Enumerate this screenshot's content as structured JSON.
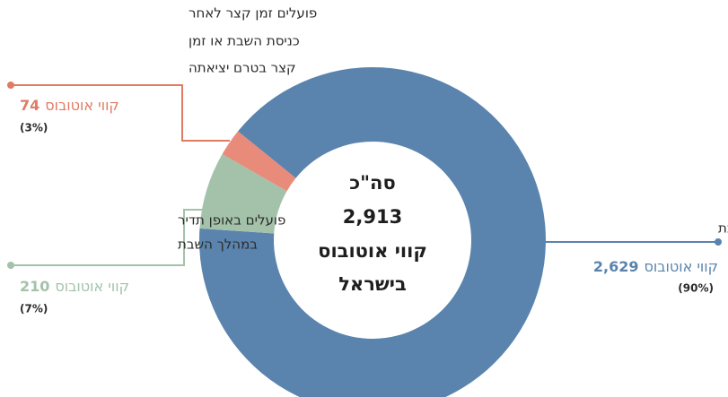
{
  "chart_data": {
    "type": "donut",
    "center_text": [
      "סה\"כ",
      "2,913",
      "קווי אוטובוס",
      "בישראל"
    ],
    "total": 2913,
    "categories": [
      [
        "לא פועלים בשבת"
      ],
      [
        "פועלים באופן תדיר",
        "במהלך השבת"
      ],
      [
        "פועלים זמן קצר לאחר",
        "כניסת השבת או זמן",
        "קצר בטרם יציאתה"
      ]
    ],
    "values": [
      2629,
      210,
      74
    ],
    "value_labels": [
      "2,629",
      "210",
      "74"
    ],
    "unit": "קווי אוטובוס",
    "percents": [
      90,
      7,
      3
    ],
    "percent_labels": [
      "(90%)",
      "(7%)",
      "(3%)"
    ],
    "colors": [
      "#5a84ad",
      "#a3c2a9",
      "#e88b7b"
    ],
    "label_colors": [
      "#5a84ad",
      "#a3c2a9",
      "#e07b64"
    ]
  }
}
